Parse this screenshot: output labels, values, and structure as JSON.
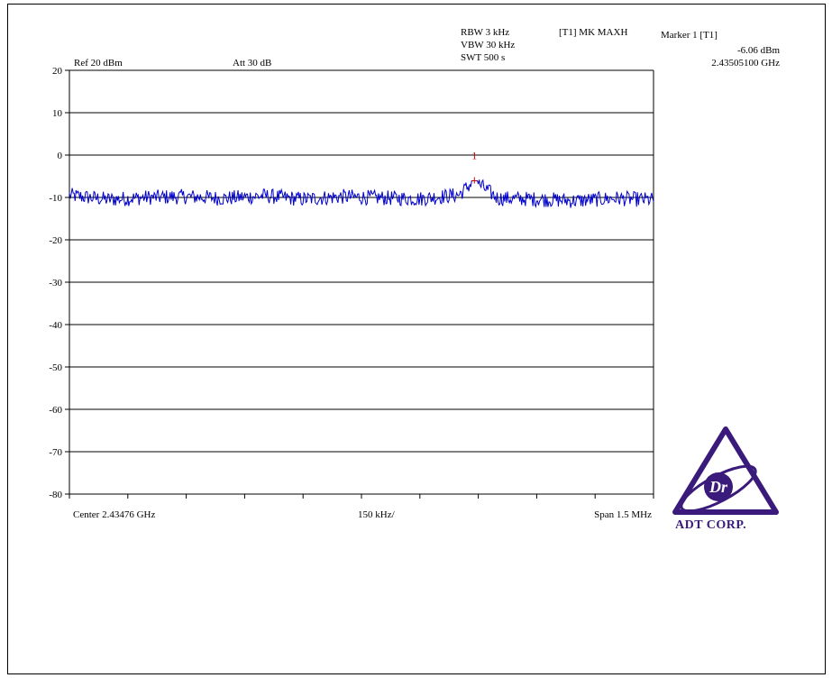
{
  "header": {
    "ref_level": "Ref 20 dBm",
    "attenuation": "Att  30 dB",
    "rbw": "RBW 3 kHz",
    "vbw": "VBW 30 kHz",
    "sweep_time": "SWT 500 s",
    "trace_mode": "[T1] MK MAXH"
  },
  "marker": {
    "title": "Marker 1 [T1]",
    "level": "-6.06 dBm",
    "frequency": "2.43505100 GHz"
  },
  "footer": {
    "center": "Center 2.43476 GHz",
    "per_div": "150 kHz/",
    "span": "Span 1.5 MHz"
  },
  "logo": {
    "text": "ADT CORP.",
    "monogram": "Dr",
    "color": "#3a1a7a"
  },
  "chart_data": {
    "type": "line",
    "x_unit": "GHz",
    "y_unit": "dBm",
    "xlim": [
      2.43401,
      2.43551
    ],
    "ylim": [
      -80,
      20
    ],
    "y_ticks": [
      20,
      10,
      0,
      -10,
      -20,
      -30,
      -40,
      -50,
      -60,
      -70,
      -80
    ],
    "y_tick_labels": [
      "20",
      "10",
      "0",
      "-10",
      "-20",
      "-30",
      "-40",
      "-50",
      "-60",
      "-70",
      "-80"
    ],
    "grid": true,
    "line_color": "#0000cc",
    "marker_color": "#cc0000",
    "series": [
      {
        "x": [
          2.43401,
          2.43411,
          2.43421,
          2.43431,
          2.43441,
          2.43451,
          2.43461,
          2.43471,
          2.43481,
          2.43491,
          2.43501,
          2.43505,
          2.43511,
          2.43521,
          2.43531,
          2.43541,
          2.43551
        ],
        "values": [
          -9.5,
          -10.5,
          -10,
          -9.8,
          -10.2,
          -9.6,
          -10.4,
          -9.8,
          -10.1,
          -10.3,
          -9.4,
          -6.06,
          -10.2,
          -10.4,
          -10.8,
          -10.2,
          -10.6
        ]
      }
    ],
    "marker": {
      "label": "1",
      "x": 2.43505,
      "y": -6.06
    }
  }
}
